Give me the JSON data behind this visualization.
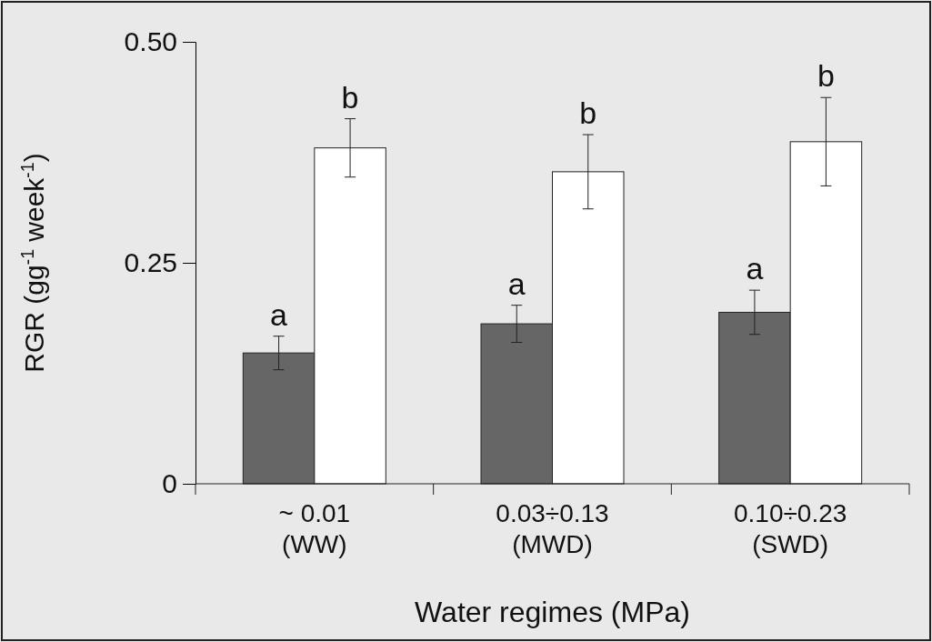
{
  "chart_data": {
    "type": "bar",
    "xlabel": "Water regimes (MPa)",
    "ylabel": "RGR (gg$^{-1}$ week$^{-1}$)",
    "categories": [
      "~ 0.01\n(WW)",
      "0.03÷0.13\n(MWD)",
      "0.10÷0.23\n(SWD)"
    ],
    "series": [
      {
        "color": "#666666",
        "values": [
          0.148,
          0.181,
          0.194
        ],
        "errors": [
          0.019,
          0.021,
          0.025
        ]
      },
      {
        "color": "#ffffff",
        "values": [
          0.38,
          0.353,
          0.387
        ],
        "errors": [
          0.033,
          0.042,
          0.05
        ]
      }
    ],
    "ylim": [
      0,
      0.5
    ],
    "yticks": [
      0,
      0.25,
      {
        "value": 0.5,
        "label": "0.50"
      }
    ],
    "annotations": [
      {
        "text": "a",
        "x": "~ 0.01\n(WW)",
        "y": 0.148
      },
      {
        "text": "b",
        "x": "~ 0.01\n(WW)",
        "y": 0.38
      },
      {
        "text": "a",
        "x": "0.03÷0.13\n(MWD)",
        "y": 0.181
      },
      {
        "text": "b",
        "x": "0.03÷0.13\n(MWD)",
        "y": 0.353
      },
      {
        "text": "a",
        "x": "0.10÷0.23\n(SWD)",
        "y": 0.194
      },
      {
        "text": "b",
        "x": "0.10÷0.23\n(SWD)",
        "y": 0.387
      }
    ]
  }
}
